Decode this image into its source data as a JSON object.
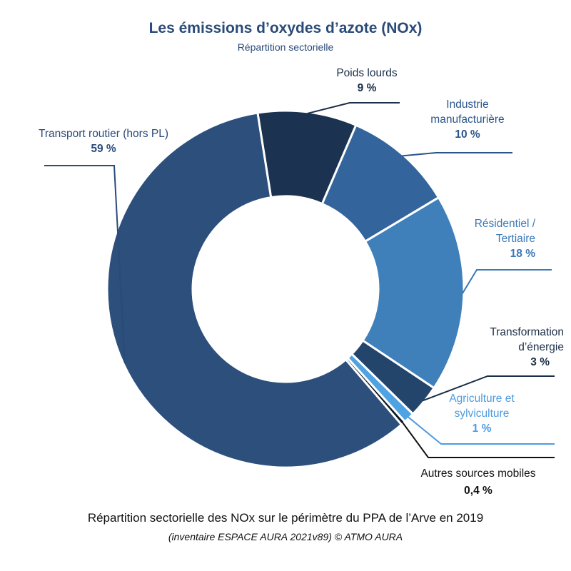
{
  "header": {
    "title": "Les émissions d’oxydes d’azote (NOx)",
    "subtitle": "Répartition sectorielle"
  },
  "footer": {
    "caption": "Répartition sectorielle des NOx sur le périmètre du PPA de l’Arve en 2019",
    "source": "(inventaire ESPACE AURA 2021v89) © ATMO AURA"
  },
  "chart_data": {
    "type": "pie",
    "donut": true,
    "title": "Les émissions d’oxydes d’azote (NOx)",
    "subtitle": "Répartition sectorielle",
    "slices": [
      {
        "label": "Poids lourds",
        "value": 9,
        "value_label": "9 %",
        "color": "#1b3350",
        "label_color": "#1b2e47"
      },
      {
        "label": "Industrie manufacturière",
        "label_lines": [
          "Industrie",
          "manufacturière"
        ],
        "value": 10,
        "value_label": "10 %",
        "color": "#33659c",
        "label_color": "#2a558a"
      },
      {
        "label": "Résidentiel / Tertiaire",
        "label_lines": [
          "Résidentiel /",
          "Tertiaire"
        ],
        "value": 18,
        "value_label": "18 %",
        "color": "#3f80ba",
        "label_color": "#3a78b6"
      },
      {
        "label": "Transformation d’énergie",
        "label_lines": [
          "Transformation",
          "d’énergie"
        ],
        "value": 3,
        "value_label": "3 %",
        "color": "#24456b",
        "label_color": "#1b2e47"
      },
      {
        "label": "Agriculture et sylviculture",
        "label_lines": [
          "Agriculture et",
          "sylviculture"
        ],
        "value": 1,
        "value_label": "1 %",
        "color": "#4fa3e3",
        "label_color": "#4d9be0"
      },
      {
        "label": "Autres sources mobiles",
        "value": 0.4,
        "value_label": "0,4 %",
        "color": "#101820",
        "label_color": "#111111"
      },
      {
        "label": "Transport routier (hors PL)",
        "value": 59,
        "value_label": "59 %",
        "color": "#2c4f7c",
        "label_color": "#2a4a78"
      }
    ]
  }
}
